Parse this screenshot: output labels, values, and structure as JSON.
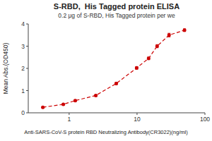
{
  "chart_data": {
    "type": "line",
    "title": "S-RBD,  His Tagged protein ELISA",
    "subtitle": "0.2 μg of S-RBD, His Tagged protein per we",
    "xlabel": "Anti-SARS-CoV-S protein RBD Neutralizing Antibody(CR3022)(ng/ml)",
    "ylabel": "Mean Abs.(OD450)",
    "x": [
      0.41,
      0.82,
      1.23,
      2.47,
      4.94,
      9.88,
      14.81,
      19.75,
      29.63,
      50.0
    ],
    "values": [
      0.25,
      0.38,
      0.55,
      0.78,
      1.32,
      2.02,
      2.45,
      3.0,
      3.5,
      3.72
    ],
    "errors": [
      0.03,
      0.03,
      0.04,
      0.04,
      0.05,
      0.06,
      0.06,
      0.07,
      0.08,
      0.06
    ],
    "color": "#cc0000",
    "marker": "circle",
    "line_style": "dashed",
    "log": "x",
    "xlim": [
      0.25,
      100
    ],
    "xticks": [
      1,
      10,
      100
    ],
    "ylim": [
      0,
      4
    ],
    "yticks": [
      0,
      1,
      2,
      3,
      4
    ]
  }
}
